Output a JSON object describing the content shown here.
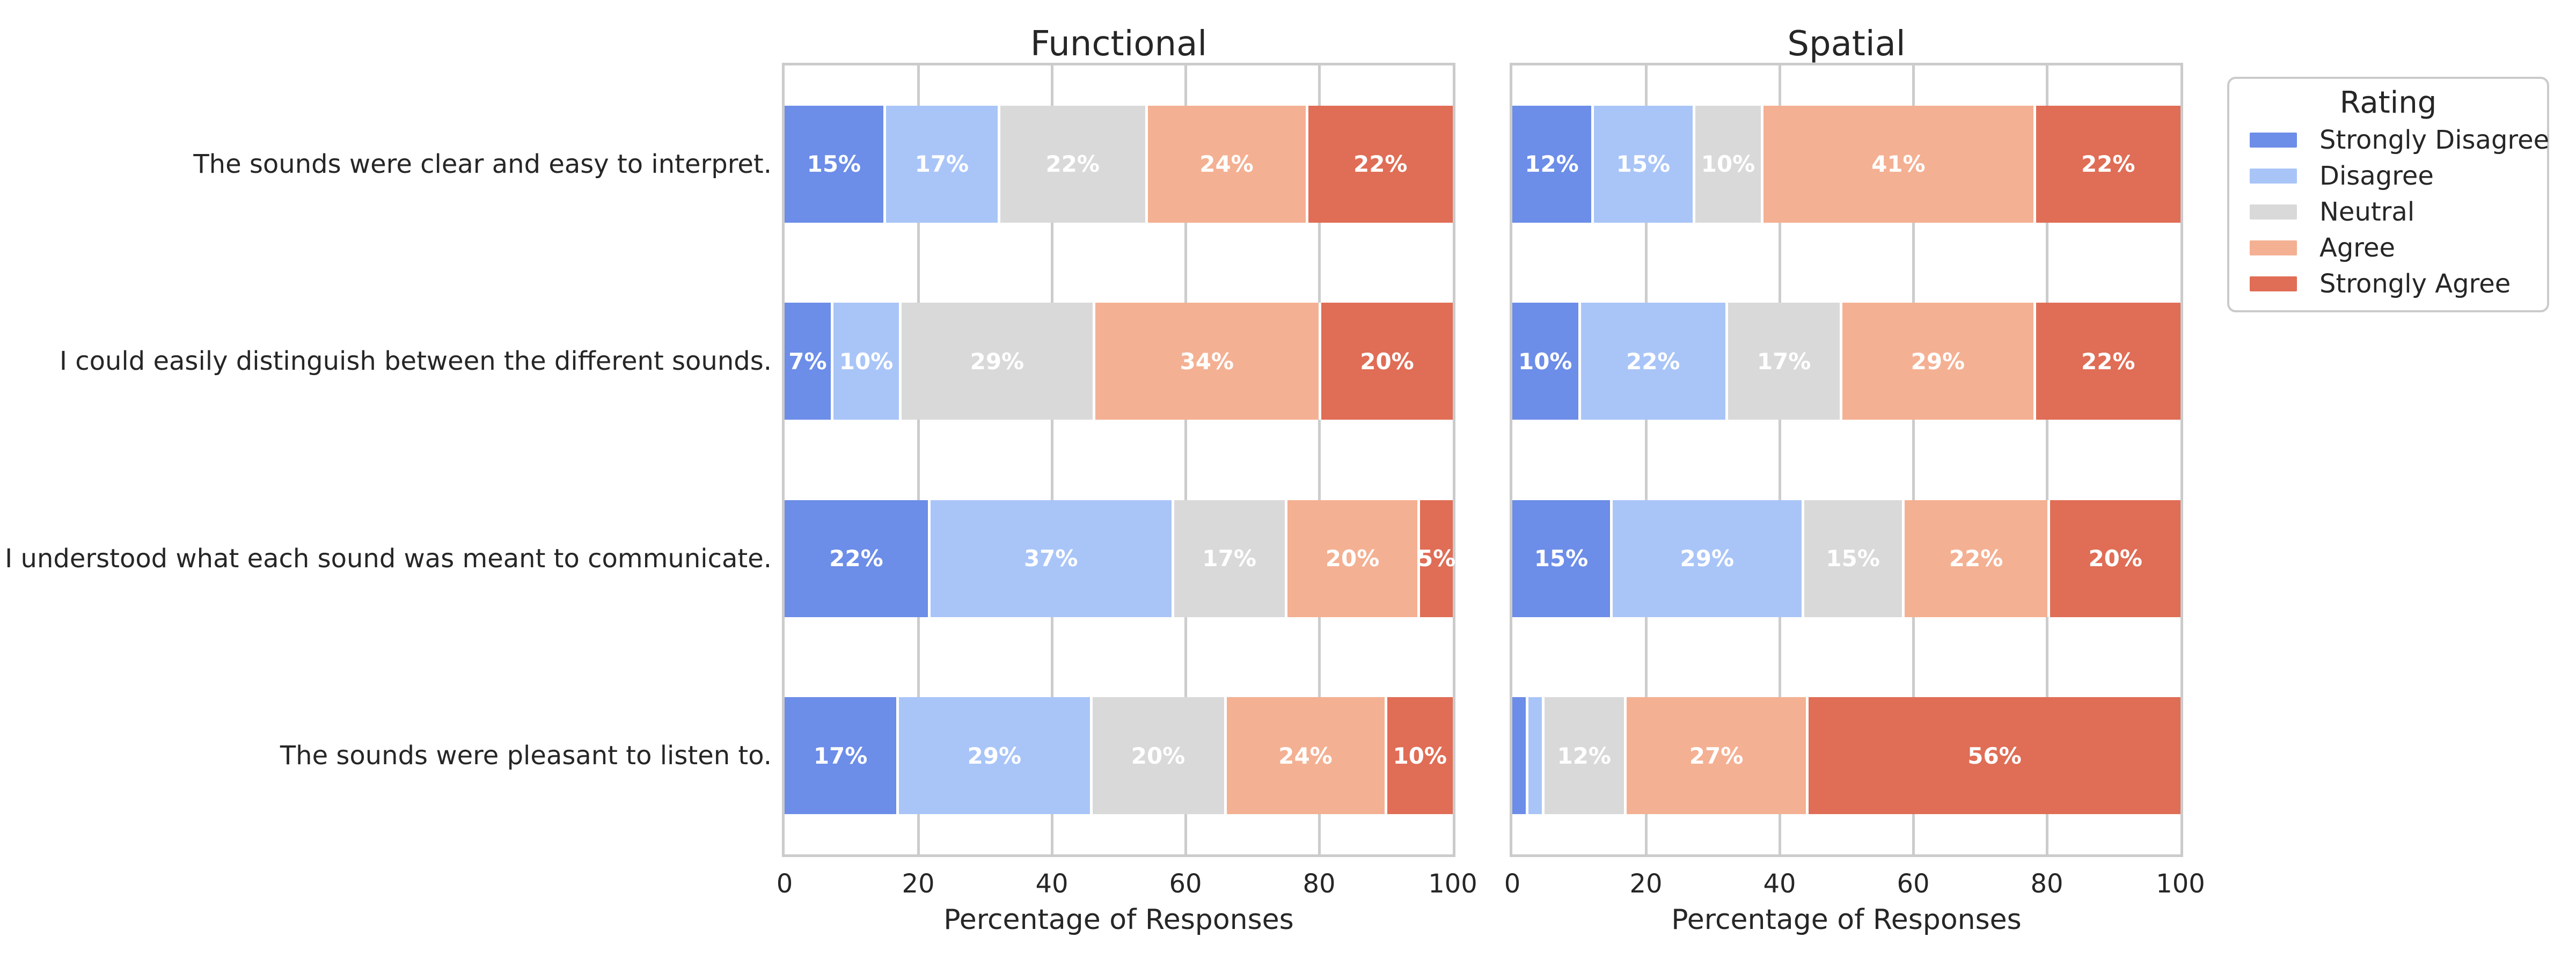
{
  "chart_data": {
    "type": "bar",
    "orientation": "horizontal",
    "stacked": true,
    "unit": "%",
    "legend_title": "Rating",
    "legend_position": "outside-upper-right",
    "grid": true,
    "xlim": [
      0,
      100
    ],
    "x_ticks": [
      "0",
      "20",
      "40",
      "60",
      "80",
      "100"
    ],
    "xlabel": "Percentage of Responses",
    "ratings": [
      {
        "name": "Strongly Disagree",
        "color": "#6C8DE8"
      },
      {
        "name": "Disagree",
        "color": "#A9C5F8"
      },
      {
        "name": "Neutral",
        "color": "#D9D9D9"
      },
      {
        "name": "Agree",
        "color": "#F4B092"
      },
      {
        "name": "Strongly Agree",
        "color": "#E06D55"
      }
    ],
    "questions": [
      "The sounds were clear and easy to interpret.",
      "I could easily distinguish between the different sounds.",
      "I understood what each sound was meant to communicate.",
      "The sounds were pleasant to listen to."
    ],
    "panels": [
      {
        "title": "Functional",
        "rows": [
          {
            "values": [
              15,
              17,
              22,
              24,
              22
            ],
            "labels": [
              "15%",
              "17%",
              "22%",
              "24%",
              "22%"
            ]
          },
          {
            "values": [
              7,
              10,
              29,
              34,
              20
            ],
            "labels": [
              "7%",
              "10%",
              "29%",
              "34%",
              "20%"
            ]
          },
          {
            "values": [
              22,
              37,
              17,
              20,
              5
            ],
            "labels": [
              "22%",
              "37%",
              "17%",
              "20%",
              "5%"
            ]
          },
          {
            "values": [
              17,
              29,
              20,
              24,
              10
            ],
            "labels": [
              "17%",
              "29%",
              "20%",
              "24%",
              "10%"
            ]
          }
        ]
      },
      {
        "title": "Spatial",
        "rows": [
          {
            "values": [
              12,
              15,
              10,
              41,
              22
            ],
            "labels": [
              "12%",
              "15%",
              "10%",
              "41%",
              "22%"
            ]
          },
          {
            "values": [
              10,
              22,
              17,
              29,
              22
            ],
            "labels": [
              "10%",
              "22%",
              "17%",
              "29%",
              "22%"
            ]
          },
          {
            "values": [
              15,
              29,
              15,
              22,
              20
            ],
            "labels": [
              "15%",
              "29%",
              "15%",
              "22%",
              "20%"
            ]
          },
          {
            "values": [
              2,
              2,
              12,
              27,
              56
            ],
            "labels": [
              "",
              "",
              "12%",
              "27%",
              "56%"
            ]
          }
        ]
      }
    ],
    "styles": {
      "grid_color": "#CCCCCC",
      "spine_color": "#CBCBCB",
      "text_color": "#262626",
      "bar_label_color": "#FFFFFF",
      "background": "#FFFFFF"
    }
  }
}
